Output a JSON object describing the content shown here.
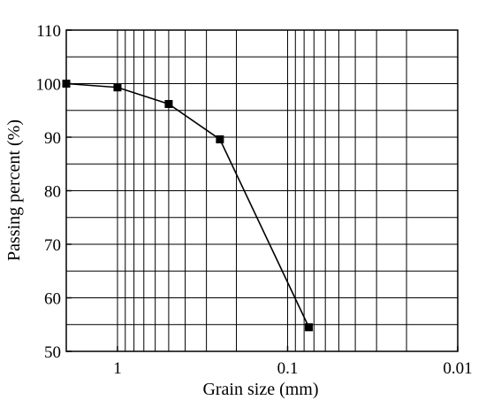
{
  "chart_data": {
    "type": "line",
    "xlabel": "Grain size (mm)",
    "ylabel": "Passing percent (%)",
    "x_scale": "log",
    "x_reversed": true,
    "xlim": [
      2,
      0.01
    ],
    "ylim": [
      50,
      110
    ],
    "x_ticks": [
      {
        "value": 1,
        "label": "1"
      },
      {
        "value": 0.1,
        "label": "0.1"
      },
      {
        "value": 0.01,
        "label": "0.01"
      }
    ],
    "y_ticks": [
      50,
      60,
      70,
      80,
      90,
      100,
      110
    ],
    "grid": true,
    "marker": "square",
    "series": [
      {
        "x": [
          2,
          1,
          0.5,
          0.25,
          0.075
        ],
        "y": [
          100,
          99.3,
          96.2,
          89.6,
          54.5
        ]
      }
    ]
  }
}
